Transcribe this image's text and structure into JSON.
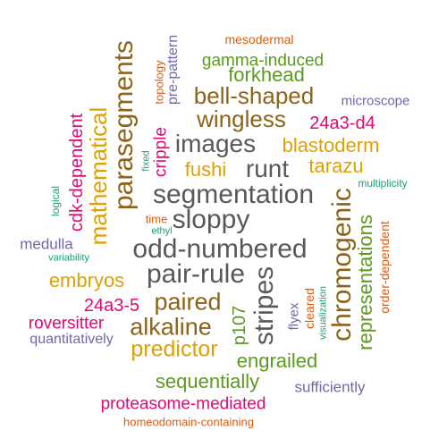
{
  "palette": {
    "gray": "#58585a",
    "brown": "#8e6318",
    "green": "#5b9a1e",
    "orange": "#dfa006",
    "pink": "#df0a74",
    "purple": "#6f68ad",
    "teal": "#1c9e78",
    "red": "#dd5b0d"
  },
  "words": [
    {
      "text": "mesodermal",
      "color": "red"
    },
    {
      "text": "gamma-induced",
      "color": "green"
    },
    {
      "text": "forkhead",
      "color": "green"
    },
    {
      "text": "bell-shaped",
      "color": "brown"
    },
    {
      "text": "microscope",
      "color": "purple"
    },
    {
      "text": "wingless",
      "color": "brown"
    },
    {
      "text": "24a3-d4",
      "color": "pink"
    },
    {
      "text": "images",
      "color": "gray"
    },
    {
      "text": "runt",
      "color": "gray"
    },
    {
      "text": "blastoderm",
      "color": "orange"
    },
    {
      "text": "fushi",
      "color": "orange"
    },
    {
      "text": "tarazu",
      "color": "orange"
    },
    {
      "text": "multiplicity",
      "color": "teal"
    },
    {
      "text": "segmentation",
      "color": "gray"
    },
    {
      "text": "sloppy",
      "color": "gray"
    },
    {
      "text": "time",
      "color": "red"
    },
    {
      "text": "ethyl",
      "color": "teal"
    },
    {
      "text": "medulla",
      "color": "purple"
    },
    {
      "text": "variability",
      "color": "teal"
    },
    {
      "text": "odd-numbered",
      "color": "gray"
    },
    {
      "text": "embryos",
      "color": "orange"
    },
    {
      "text": "pair-rule",
      "color": "gray"
    },
    {
      "text": "24a3-5",
      "color": "pink"
    },
    {
      "text": "paired",
      "color": "brown"
    },
    {
      "text": "roversitter",
      "color": "pink"
    },
    {
      "text": "alkaline",
      "color": "brown"
    },
    {
      "text": "quantitatively",
      "color": "purple"
    },
    {
      "text": "predictor",
      "color": "orange"
    },
    {
      "text": "engrailed",
      "color": "green"
    },
    {
      "text": "sequentially",
      "color": "green"
    },
    {
      "text": "sufficiently",
      "color": "purple"
    },
    {
      "text": "proteasome-mediated",
      "color": "pink"
    },
    {
      "text": "homeodomain-containing",
      "color": "red"
    },
    {
      "text": "parasegments",
      "color": "brown"
    },
    {
      "text": "mathematical",
      "color": "orange"
    },
    {
      "text": "cdk-dependent",
      "color": "pink"
    },
    {
      "text": "logical",
      "color": "teal"
    },
    {
      "text": "topology",
      "color": "red"
    },
    {
      "text": "pre-pattern",
      "color": "purple"
    },
    {
      "text": "fixed",
      "color": "teal"
    },
    {
      "text": "cripple",
      "color": "pink"
    },
    {
      "text": "chromogenic",
      "color": "brown"
    },
    {
      "text": "representations",
      "color": "green"
    },
    {
      "text": "order-dependent",
      "color": "red"
    },
    {
      "text": "stripes",
      "color": "gray"
    },
    {
      "text": "p107",
      "color": "green"
    },
    {
      "text": "flyex",
      "color": "purple"
    },
    {
      "text": "cleared",
      "color": "red"
    },
    {
      "text": "visualization",
      "color": "teal"
    }
  ]
}
